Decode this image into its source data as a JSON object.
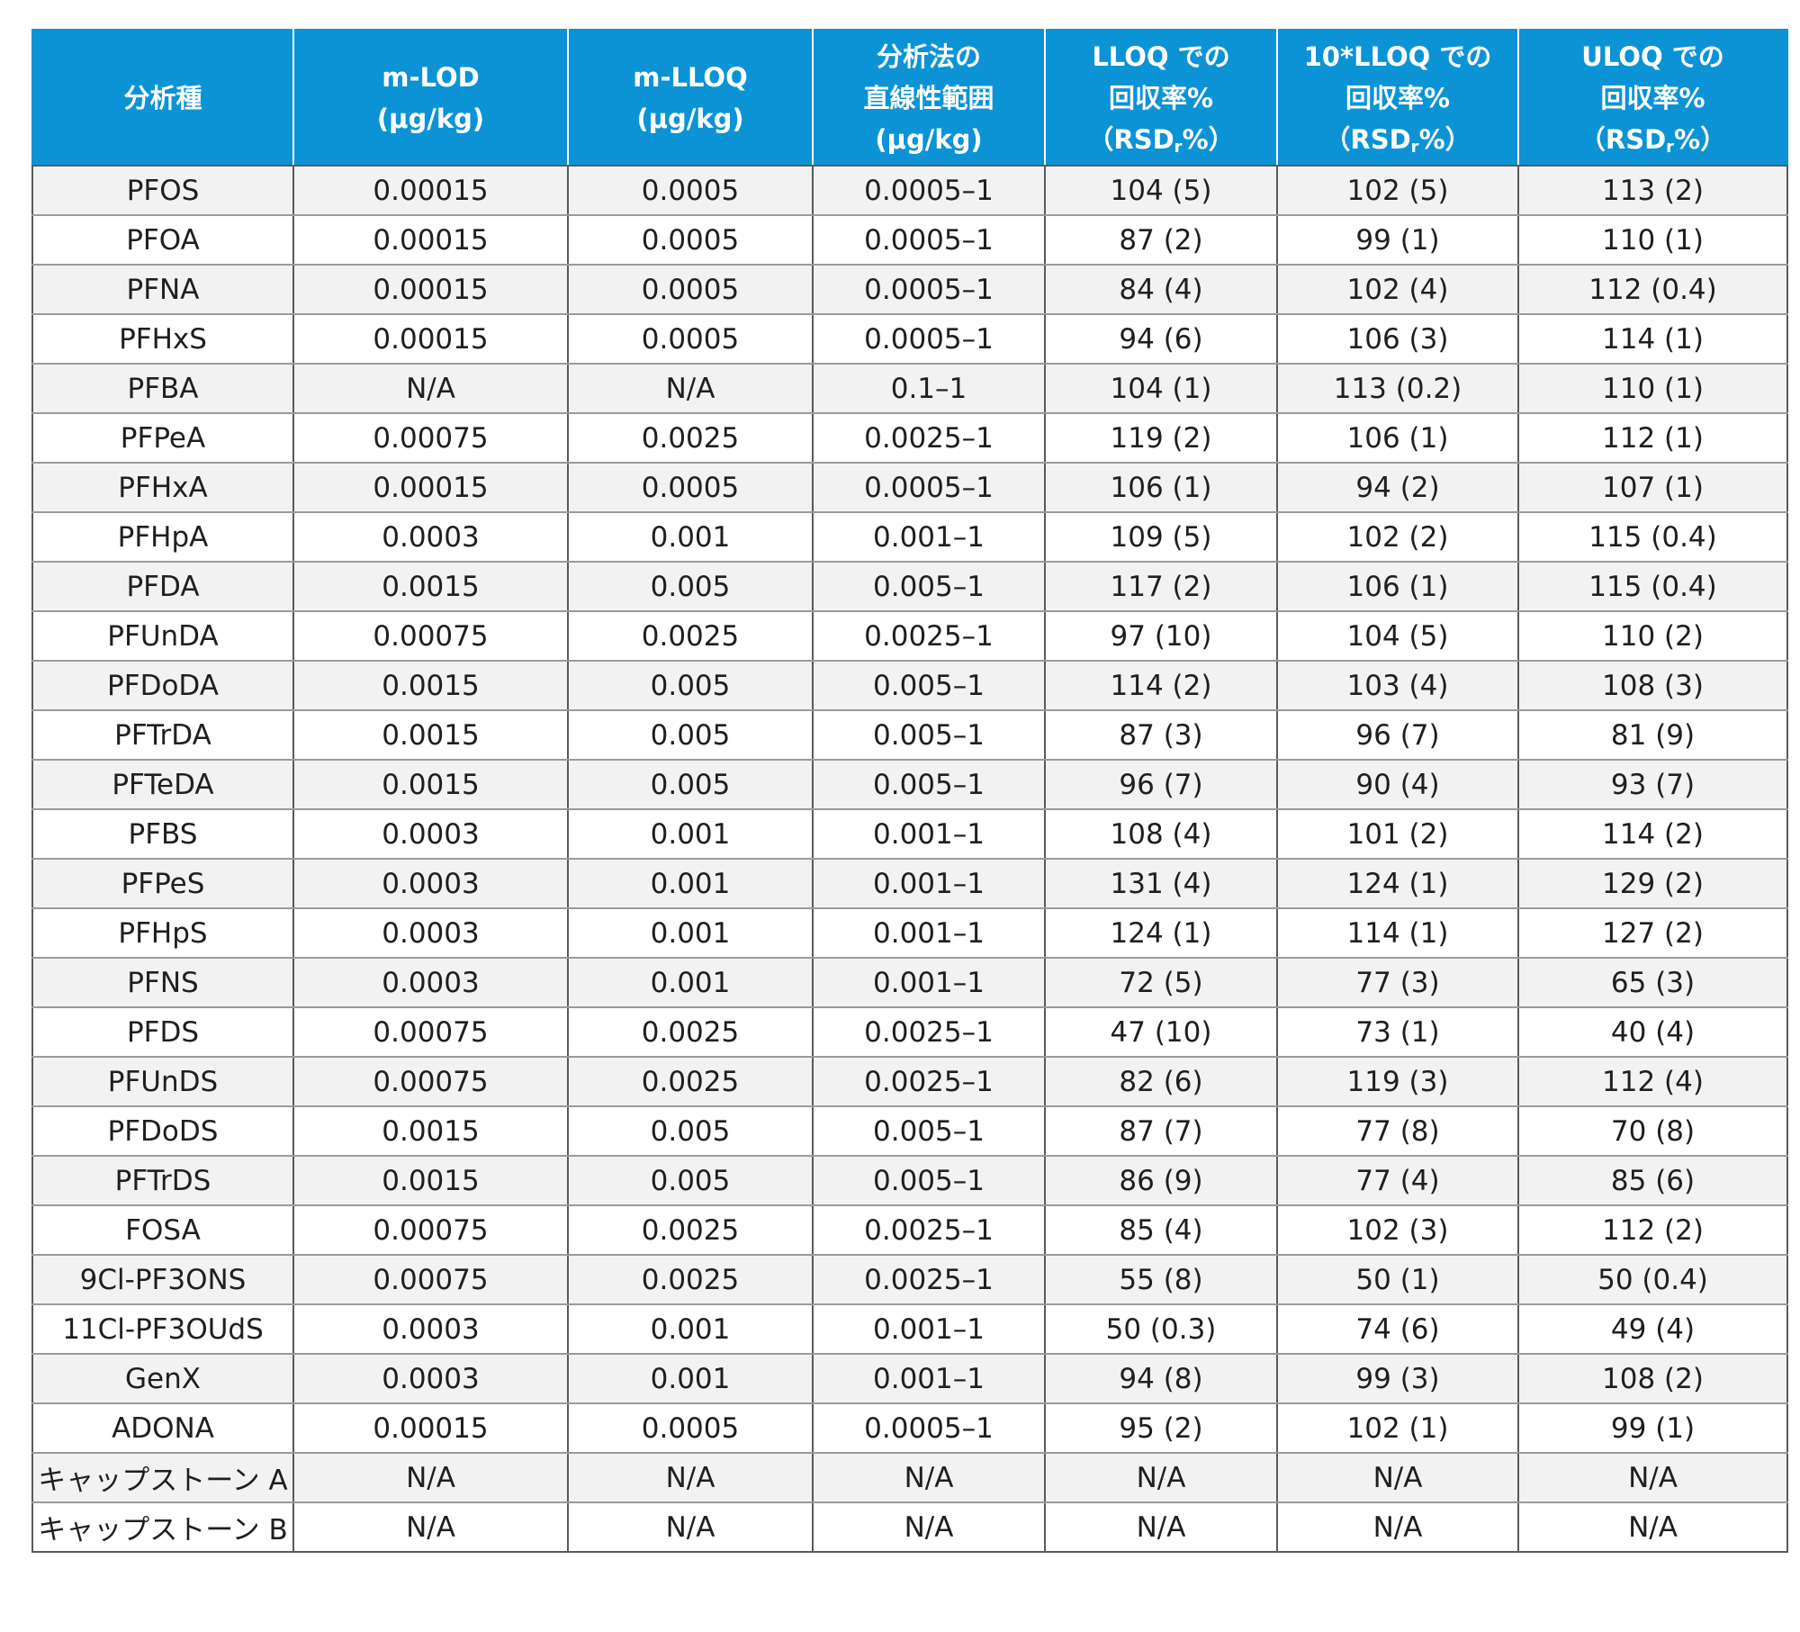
{
  "headers": [
    {
      "lines": [
        "分析種"
      ]
    },
    {
      "lines": [
        "m-LOD",
        "(μg/kg)"
      ]
    },
    {
      "lines": [
        "m-LLOQ",
        "(μg/kg)"
      ]
    },
    {
      "lines": [
        "分析法の",
        "直線性範囲",
        "(μg/kg)"
      ]
    },
    {
      "lines": [
        "LLOQ での",
        "回収率%"
      ],
      "rsd": [
        "（RSD",
        "r",
        "%）"
      ]
    },
    {
      "lines": [
        "10*LLOQ での",
        "回収率%"
      ],
      "rsd": [
        "（RSD",
        "r",
        "%）"
      ]
    },
    {
      "lines": [
        "ULOQ での",
        "回収率%"
      ],
      "rsd": [
        "（RSD",
        "r",
        "%）"
      ]
    }
  ],
  "rows": [
    [
      "PFOS",
      "0.00015",
      "0.0005",
      "0.0005–1",
      "104 (5)",
      "102 (5)",
      "113 (2)"
    ],
    [
      "PFOA",
      "0.00015",
      "0.0005",
      "0.0005–1",
      "87 (2)",
      "99 (1)",
      "110 (1)"
    ],
    [
      "PFNA",
      "0.00015",
      "0.0005",
      "0.0005–1",
      "84 (4)",
      "102 (4)",
      "112 (0.4)"
    ],
    [
      "PFHxS",
      "0.00015",
      "0.0005",
      "0.0005–1",
      "94 (6)",
      "106 (3)",
      "114 (1)"
    ],
    [
      "PFBA",
      "N/A",
      "N/A",
      "0.1–1",
      "104 (1)",
      "113 (0.2)",
      "110 (1)"
    ],
    [
      "PFPeA",
      "0.00075",
      "0.0025",
      "0.0025–1",
      "119 (2)",
      "106 (1)",
      "112 (1)"
    ],
    [
      "PFHxA",
      "0.00015",
      "0.0005",
      "0.0005–1",
      "106 (1)",
      "94 (2)",
      "107 (1)"
    ],
    [
      "PFHpA",
      "0.0003",
      "0.001",
      "0.001–1",
      "109 (5)",
      "102 (2)",
      "115 (0.4)"
    ],
    [
      "PFDA",
      "0.0015",
      "0.005",
      "0.005–1",
      "117 (2)",
      "106 (1)",
      "115 (0.4)"
    ],
    [
      "PFUnDA",
      "0.00075",
      "0.0025",
      "0.0025–1",
      "97 (10)",
      "104 (5)",
      "110 (2)"
    ],
    [
      "PFDoDA",
      "0.0015",
      "0.005",
      "0.005–1",
      "114 (2)",
      "103 (4)",
      "108 (3)"
    ],
    [
      "PFTrDA",
      "0.0015",
      "0.005",
      "0.005–1",
      "87 (3)",
      "96 (7)",
      "81 (9)"
    ],
    [
      "PFTeDA",
      "0.0015",
      "0.005",
      "0.005–1",
      "96 (7)",
      "90 (4)",
      "93 (7)"
    ],
    [
      "PFBS",
      "0.0003",
      "0.001",
      "0.001–1",
      "108 (4)",
      "101 (2)",
      "114 (2)"
    ],
    [
      "PFPeS",
      "0.0003",
      "0.001",
      "0.001–1",
      "131 (4)",
      "124 (1)",
      "129 (2)"
    ],
    [
      "PFHpS",
      "0.0003",
      "0.001",
      "0.001–1",
      "124 (1)",
      "114 (1)",
      "127 (2)"
    ],
    [
      "PFNS",
      "0.0003",
      "0.001",
      "0.001–1",
      "72 (5)",
      "77 (3)",
      "65 (3)"
    ],
    [
      "PFDS",
      "0.00075",
      "0.0025",
      "0.0025–1",
      "47 (10)",
      "73 (1)",
      "40 (4)"
    ],
    [
      "PFUnDS",
      "0.00075",
      "0.0025",
      "0.0025–1",
      "82 (6)",
      "119 (3)",
      "112 (4)"
    ],
    [
      "PFDoDS",
      "0.0015",
      "0.005",
      "0.005–1",
      "87 (7)",
      "77 (8)",
      "70 (8)"
    ],
    [
      "PFTrDS",
      "0.0015",
      "0.005",
      "0.005–1",
      "86 (9)",
      "77 (4)",
      "85 (6)"
    ],
    [
      "FOSA",
      "0.00075",
      "0.0025",
      "0.0025–1",
      "85 (4)",
      "102 (3)",
      "112 (2)"
    ],
    [
      "9Cl-PF3ONS",
      "0.00075",
      "0.0025",
      "0.0025–1",
      "55 (8)",
      "50 (1)",
      "50 (0.4)"
    ],
    [
      "11Cl-PF3OUdS",
      "0.0003",
      "0.001",
      "0.001–1",
      "50 (0.3)",
      "74 (6)",
      "49 (4)"
    ],
    [
      "GenX",
      "0.0003",
      "0.001",
      "0.001–1",
      "94 (8)",
      "99 (3)",
      "108 (2)"
    ],
    [
      "ADONA",
      "0.00015",
      "0.0005",
      "0.0005–1",
      "95 (2)",
      "102 (1)",
      "99 (1)"
    ],
    [
      "キャップストーン A",
      "N/A",
      "N/A",
      "N/A",
      "N/A",
      "N/A",
      "N/A"
    ],
    [
      "キャップストーン B",
      "N/A",
      "N/A",
      "N/A",
      "N/A",
      "N/A",
      "N/A"
    ]
  ]
}
